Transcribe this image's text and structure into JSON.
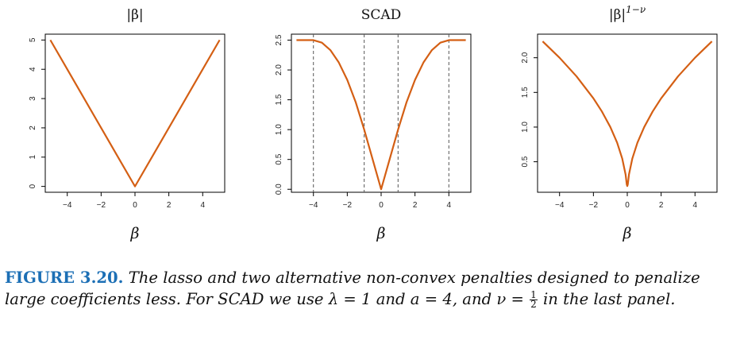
{
  "chart_data": [
    {
      "type": "line",
      "title": "|β|",
      "title_sup": "",
      "xlabel": "β",
      "xlim": [
        -5.3,
        5.3
      ],
      "ylim": [
        -0.2,
        5.2
      ],
      "xticks": [
        -4,
        -2,
        0,
        2,
        4
      ],
      "xtick_labels": [
        "−4",
        "−2",
        "0",
        "2",
        "4"
      ],
      "yticks": [
        0,
        1,
        2,
        3,
        4,
        5
      ],
      "ytick_labels": [
        "0",
        "1",
        "2",
        "3",
        "4",
        "5"
      ],
      "series": [
        {
          "x": [
            -5,
            -4,
            -3,
            -2,
            -1,
            0,
            1,
            2,
            3,
            4,
            5
          ],
          "y": [
            5,
            4,
            3,
            2,
            1,
            0,
            1,
            2,
            3,
            4,
            5
          ]
        }
      ],
      "vlines": [],
      "line_color": "#d45f14"
    },
    {
      "type": "line",
      "title": "SCAD",
      "title_sup": "",
      "xlabel": "β",
      "xlim": [
        -5.3,
        5.3
      ],
      "ylim": [
        -0.05,
        2.6
      ],
      "xticks": [
        -4,
        -2,
        0,
        2,
        4
      ],
      "xtick_labels": [
        "−4",
        "−2",
        "0",
        "2",
        "4"
      ],
      "yticks": [
        0.0,
        0.5,
        1.0,
        1.5,
        2.0,
        2.5
      ],
      "ytick_labels": [
        "0.0",
        "0.5",
        "1.0",
        "1.5",
        "2.0",
        "2.5"
      ],
      "series": [
        {
          "x": [
            -5,
            -4.5,
            -4,
            -3.5,
            -3,
            -2.5,
            -2,
            -1.5,
            -1,
            -0.5,
            0,
            0.5,
            1,
            1.5,
            2,
            2.5,
            3,
            3.5,
            4,
            4.5,
            5
          ],
          "y": [
            2.5,
            2.5,
            2.5,
            2.458,
            2.333,
            2.125,
            1.833,
            1.458,
            1.0,
            0.5,
            0.0,
            0.5,
            1.0,
            1.458,
            1.833,
            2.125,
            2.333,
            2.458,
            2.5,
            2.5,
            2.5
          ]
        }
      ],
      "vlines": [
        -4,
        -1,
        1,
        4
      ],
      "line_color": "#d45f14"
    },
    {
      "type": "line",
      "title": "|β|",
      "title_sup": "1−ν",
      "xlabel": "β",
      "xlim": [
        -5.3,
        5.3
      ],
      "ylim": [
        0.06,
        2.34
      ],
      "xticks": [
        -4,
        -2,
        0,
        2,
        4
      ],
      "xtick_labels": [
        "−4",
        "−2",
        "0",
        "2",
        "4"
      ],
      "yticks": [
        0.5,
        1.0,
        1.5,
        2.0
      ],
      "ytick_labels": [
        "0.5",
        "1.0",
        "1.5",
        "2.0"
      ],
      "series": [
        {
          "x": [
            -5,
            -4,
            -3,
            -2,
            -1.5,
            -1,
            -0.6,
            -0.3,
            -0.1,
            -0.03,
            0.0,
            0.03,
            0.1,
            0.3,
            0.6,
            1,
            1.5,
            2,
            3,
            4,
            5
          ],
          "y": [
            2.236,
            2.0,
            1.732,
            1.414,
            1.225,
            1.0,
            0.775,
            0.548,
            0.316,
            0.173,
            0.15,
            0.173,
            0.316,
            0.548,
            0.775,
            1.0,
            1.225,
            1.414,
            1.732,
            2.0,
            2.236
          ]
        }
      ],
      "vlines": [],
      "line_color": "#d45f14"
    }
  ],
  "caption": {
    "label": "FIGURE 3.20.",
    "text_1": "The lasso and two alternative non-convex penalties designed to penalize large coefficients less. For SCAD we use λ = 1 and a = 4, and ν =",
    "frac_num": "1",
    "frac_den": "2",
    "text_2": "in the last panel."
  },
  "colors": {
    "line": "#d45f14",
    "caption_label": "#1c6fb5",
    "vline": "#555555"
  }
}
